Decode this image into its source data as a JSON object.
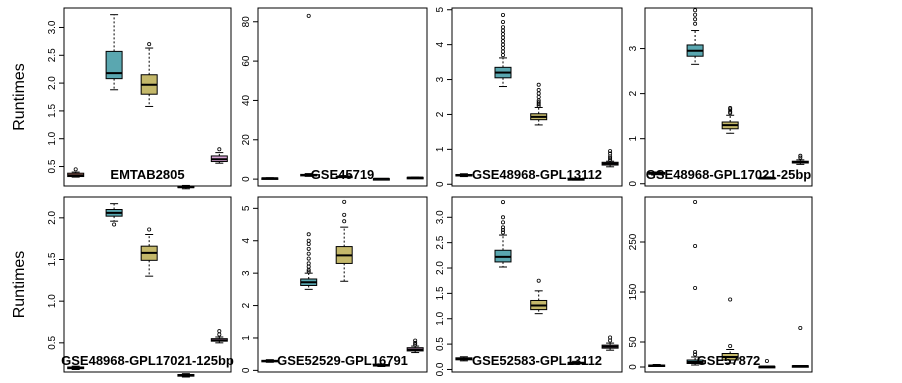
{
  "chart_data": {
    "type": "boxplot",
    "ylabel": "Runtimes",
    "colors": [
      "#d08a7a",
      "#5aa7b0",
      "#c4b86a",
      "#7fa4c9",
      "#d9a6d6"
    ],
    "panels": [
      {
        "title": "EMTAB2805",
        "ylim": [
          0.15,
          3.35
        ],
        "yticks": [
          0.5,
          1.0,
          1.5,
          2.0,
          2.5,
          3.0
        ],
        "ytick_labels": [
          "0.5",
          "1.0",
          "1.5",
          "2.0",
          "2.5",
          "3.0"
        ],
        "boxes": [
          {
            "min": 0.31,
            "q1": 0.32,
            "median": 0.34,
            "q3": 0.38,
            "max": 0.4,
            "outliers": [
              0.45
            ]
          },
          {
            "min": 1.88,
            "q1": 2.08,
            "median": 2.18,
            "q3": 2.57,
            "max": 3.23,
            "outliers": []
          },
          {
            "min": 1.58,
            "q1": 1.8,
            "median": 1.97,
            "q3": 2.15,
            "max": 2.63,
            "outliers": [
              2.7
            ]
          },
          {
            "min": 0.1,
            "q1": 0.12,
            "median": 0.13,
            "q3": 0.15,
            "max": 0.16,
            "outliers": []
          },
          {
            "min": 0.56,
            "q1": 0.59,
            "median": 0.63,
            "q3": 0.69,
            "max": 0.75,
            "outliers": [
              0.81
            ]
          }
        ]
      },
      {
        "title": "GSE45719",
        "ylim": [
          -3.5,
          87
        ],
        "yticks": [
          0,
          20,
          40,
          60,
          80
        ],
        "ytick_labels": [
          "0",
          "20",
          "40",
          "60",
          "80"
        ],
        "boxes": [
          {
            "min": 0.2,
            "q1": 0.3,
            "median": 0.45,
            "q3": 0.6,
            "max": 0.7,
            "outliers": []
          },
          {
            "min": 1.4,
            "q1": 1.9,
            "median": 2.1,
            "q3": 2.4,
            "max": 2.8,
            "outliers": [
              83
            ]
          },
          {
            "min": 0.9,
            "q1": 1.1,
            "median": 1.3,
            "q3": 1.5,
            "max": 1.8,
            "outliers": []
          },
          {
            "min": 0.1,
            "q1": 0.15,
            "median": 0.2,
            "q3": 0.25,
            "max": 0.3,
            "outliers": []
          },
          {
            "min": 0.5,
            "q1": 0.65,
            "median": 0.75,
            "q3": 0.9,
            "max": 1.0,
            "outliers": []
          }
        ]
      },
      {
        "title": "GSE48968-GPL13112",
        "ylim": [
          -0.05,
          5.05
        ],
        "yticks": [
          0,
          1,
          2,
          3,
          4,
          5
        ],
        "ytick_labels": [
          "0",
          "1",
          "2",
          "3",
          "4",
          "5"
        ],
        "boxes": [
          {
            "min": 0.22,
            "q1": 0.24,
            "median": 0.26,
            "q3": 0.28,
            "max": 0.3,
            "outliers": []
          },
          {
            "min": 2.8,
            "q1": 3.05,
            "median": 3.2,
            "q3": 3.35,
            "max": 3.62,
            "outliers": [
              3.7,
              3.8,
              3.9,
              4.0,
              4.1,
              4.2,
              4.3,
              4.4,
              4.5,
              4.65,
              4.85
            ]
          },
          {
            "min": 1.7,
            "q1": 1.85,
            "median": 1.93,
            "q3": 2.02,
            "max": 2.2,
            "outliers": [
              2.25,
              2.3,
              2.35,
              2.4,
              2.5,
              2.6,
              2.7,
              2.85
            ]
          },
          {
            "min": 0.12,
            "q1": 0.13,
            "median": 0.15,
            "q3": 0.16,
            "max": 0.17,
            "outliers": []
          },
          {
            "min": 0.5,
            "q1": 0.55,
            "median": 0.59,
            "q3": 0.63,
            "max": 0.66,
            "outliers": [
              0.7,
              0.75,
              0.8,
              0.88,
              0.95
            ]
          }
        ]
      },
      {
        "title": "GSE48968-GPL17021-25bp",
        "ylim": [
          -0.05,
          3.9
        ],
        "yticks": [
          0,
          1,
          2,
          3
        ],
        "ytick_labels": [
          "0",
          "1",
          "2",
          "3"
        ],
        "boxes": [
          {
            "min": 0.2,
            "q1": 0.21,
            "median": 0.23,
            "q3": 0.25,
            "max": 0.26,
            "outliers": []
          },
          {
            "min": 2.65,
            "q1": 2.83,
            "median": 2.95,
            "q3": 3.08,
            "max": 3.4,
            "outliers": [
              3.55,
              3.65,
              3.75,
              3.85
            ]
          },
          {
            "min": 1.12,
            "q1": 1.22,
            "median": 1.3,
            "q3": 1.37,
            "max": 1.52,
            "outliers": [
              1.57,
              1.6,
              1.65,
              1.68
            ]
          },
          {
            "min": 0.11,
            "q1": 0.12,
            "median": 0.13,
            "q3": 0.14,
            "max": 0.15,
            "outliers": []
          },
          {
            "min": 0.43,
            "q1": 0.46,
            "median": 0.48,
            "q3": 0.5,
            "max": 0.53,
            "outliers": [
              0.58,
              0.62
            ]
          }
        ]
      },
      {
        "title": "GSE48968-GPL17021-125bp",
        "ylim": [
          0.15,
          2.25
        ],
        "yticks": [
          0.5,
          1.0,
          1.5,
          2.0
        ],
        "ytick_labels": [
          "0.5",
          "1.0",
          "1.5",
          "2.0"
        ],
        "boxes": [
          {
            "min": 0.18,
            "q1": 0.19,
            "median": 0.2,
            "q3": 0.21,
            "max": 0.22,
            "outliers": []
          },
          {
            "min": 1.96,
            "q1": 2.02,
            "median": 2.06,
            "q3": 2.1,
            "max": 2.17,
            "outliers": [
              1.92
            ]
          },
          {
            "min": 1.3,
            "q1": 1.49,
            "median": 1.58,
            "q3": 1.66,
            "max": 1.8,
            "outliers": [
              1.86
            ]
          },
          {
            "min": 0.09,
            "q1": 0.1,
            "median": 0.11,
            "q3": 0.12,
            "max": 0.13,
            "outliers": []
          },
          {
            "min": 0.5,
            "q1": 0.52,
            "median": 0.53,
            "q3": 0.55,
            "max": 0.57,
            "outliers": [
              0.6,
              0.64
            ]
          }
        ]
      },
      {
        "title": "GSE52529-GPL16791",
        "ylim": [
          -0.05,
          5.35
        ],
        "yticks": [
          0,
          1,
          2,
          3,
          4,
          5
        ],
        "ytick_labels": [
          "0",
          "1",
          "2",
          "3",
          "4",
          "5"
        ],
        "boxes": [
          {
            "min": 0.25,
            "q1": 0.27,
            "median": 0.29,
            "q3": 0.31,
            "max": 0.33,
            "outliers": []
          },
          {
            "min": 2.5,
            "q1": 2.62,
            "median": 2.72,
            "q3": 2.82,
            "max": 3.0,
            "outliers": [
              3.05,
              3.1,
              3.2,
              3.3,
              3.45,
              3.6,
              3.75,
              3.9,
              4.0,
              4.2
            ]
          },
          {
            "min": 2.75,
            "q1": 3.3,
            "median": 3.55,
            "q3": 3.82,
            "max": 4.42,
            "outliers": [
              4.6,
              4.8,
              5.2
            ]
          },
          {
            "min": 0.12,
            "q1": 0.14,
            "median": 0.16,
            "q3": 0.18,
            "max": 0.2,
            "outliers": []
          },
          {
            "min": 0.55,
            "q1": 0.6,
            "median": 0.64,
            "q3": 0.7,
            "max": 0.75,
            "outliers": [
              0.8,
              0.85,
              0.92
            ]
          }
        ]
      },
      {
        "title": "GSE52583-GPL13112",
        "ylim": [
          -0.05,
          3.4
        ],
        "yticks": [
          0.0,
          0.5,
          1.0,
          1.5,
          2.0,
          2.5,
          3.0
        ],
        "ytick_labels": [
          "0.0",
          "0.5",
          "1.0",
          "1.5",
          "2.0",
          "2.5",
          "3.0"
        ],
        "boxes": [
          {
            "min": 0.17,
            "q1": 0.19,
            "median": 0.21,
            "q3": 0.23,
            "max": 0.25,
            "outliers": []
          },
          {
            "min": 2.02,
            "q1": 2.12,
            "median": 2.22,
            "q3": 2.35,
            "max": 2.65,
            "outliers": [
              2.7,
              2.75,
              2.8,
              2.9,
              3.0,
              3.3
            ]
          },
          {
            "min": 1.1,
            "q1": 1.18,
            "median": 1.26,
            "q3": 1.36,
            "max": 1.55,
            "outliers": [
              1.75
            ]
          },
          {
            "min": 0.1,
            "q1": 0.12,
            "median": 0.13,
            "q3": 0.14,
            "max": 0.16,
            "outliers": []
          },
          {
            "min": 0.38,
            "q1": 0.42,
            "median": 0.45,
            "q3": 0.48,
            "max": 0.52,
            "outliers": [
              0.57,
              0.63
            ]
          }
        ]
      },
      {
        "title": "GSE57872",
        "ylim": [
          -10,
          340
        ],
        "yticks": [
          0,
          50,
          150,
          250
        ],
        "ytick_labels": [
          "0",
          "50",
          "150",
          "250"
        ],
        "boxes": [
          {
            "min": 1,
            "q1": 2,
            "median": 3,
            "q3": 4,
            "max": 5,
            "outliers": []
          },
          {
            "min": 4,
            "q1": 7,
            "median": 10,
            "q3": 14,
            "max": 20,
            "outliers": [
              25,
              30,
              158,
              242,
              330
            ]
          },
          {
            "min": 8,
            "q1": 14,
            "median": 20,
            "q3": 27,
            "max": 35,
            "outliers": [
              42,
              135
            ]
          },
          {
            "min": 0.5,
            "q1": 0.8,
            "median": 1,
            "q3": 1.2,
            "max": 1.5,
            "outliers": [
              12
            ]
          },
          {
            "min": 1,
            "q1": 1.5,
            "median": 2,
            "q3": 2.5,
            "max": 3,
            "outliers": [
              78
            ]
          }
        ]
      }
    ]
  }
}
